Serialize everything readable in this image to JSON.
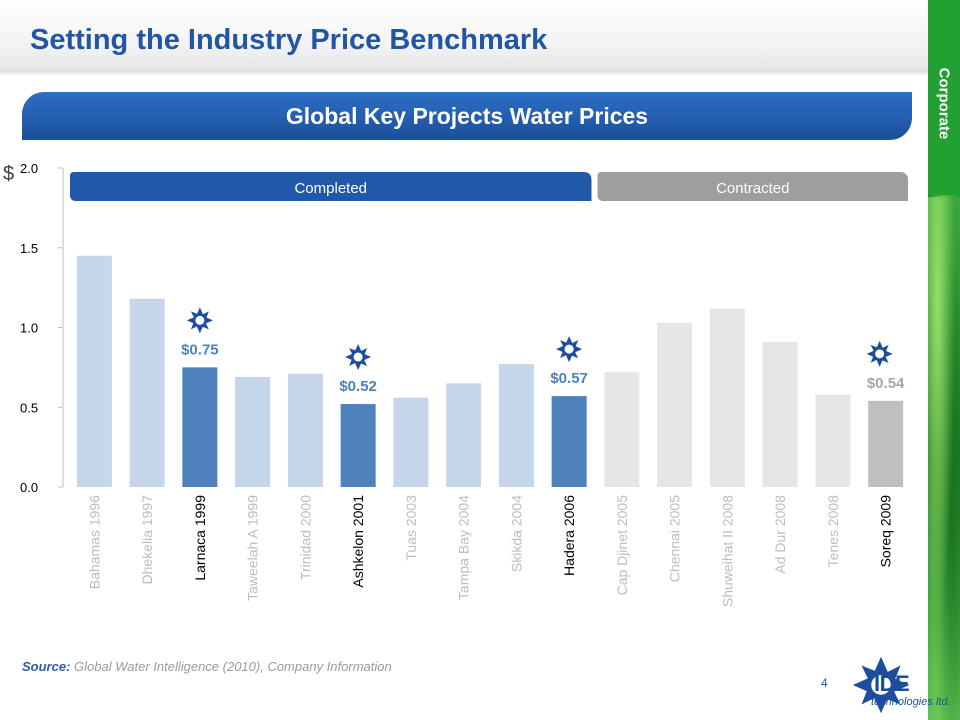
{
  "slide": {
    "title": "Setting the Industry Price Benchmark",
    "side_label": "Corporate",
    "subtitle": "Global Key Projects Water Prices",
    "page_number": "4",
    "source_label": "Source:",
    "source_text": " Global Water Intelligence (2010), Company Information",
    "logo_text": "IDE",
    "logo_sub": "technologies ltd.",
    "logo_icon": "ide-star-logo-icon"
  },
  "colors": {
    "title": "#2255a4",
    "completed_bar": "#c5d5ea",
    "completed_highlight": "#4f81bd",
    "contracted_bar": "#e6e6e6",
    "contracted_highlight": "#bfbfbf",
    "completed_header": "#2158a8",
    "contracted_header": "#9e9e9e",
    "star_icon": "#1d4e9e"
  },
  "chart_data": {
    "type": "bar",
    "ylabel": "$",
    "ylim": [
      0,
      2.0
    ],
    "yticks": [
      "0.0",
      "0.5",
      "1.0",
      "1.5",
      "2.0"
    ],
    "groups": [
      {
        "label": "Completed",
        "from": 0,
        "to": 9
      },
      {
        "label": "Contracted",
        "from": 10,
        "to": 15
      }
    ],
    "categories": [
      "Bahamas 1996",
      "Dhekelia 1997",
      "Larnaca 1999",
      "Taweelah A 1999",
      "Trinidad 2000",
      "Ashkelon 2001",
      "Tuas 2003",
      "Tampa Bay 2004",
      "Skikda 2004",
      "Hadera 2006",
      "Cap Djinet 2005",
      "Chennai 2005",
      "Shuweihat II 2008",
      "Ad Dur 2008",
      "Tenes 2008",
      "Soreq 2009"
    ],
    "values": [
      1.45,
      1.18,
      0.75,
      0.69,
      0.71,
      0.52,
      0.56,
      0.65,
      0.77,
      0.57,
      0.72,
      1.03,
      1.12,
      0.91,
      0.58,
      0.54
    ],
    "highlighted": [
      false,
      false,
      true,
      false,
      false,
      true,
      false,
      false,
      false,
      true,
      false,
      false,
      false,
      false,
      false,
      true
    ],
    "data_labels": [
      "",
      "",
      "$0.75",
      "",
      "",
      "$0.52",
      "",
      "",
      "",
      "$0.57",
      "",
      "",
      "",
      "",
      "",
      "$0.54"
    ]
  }
}
